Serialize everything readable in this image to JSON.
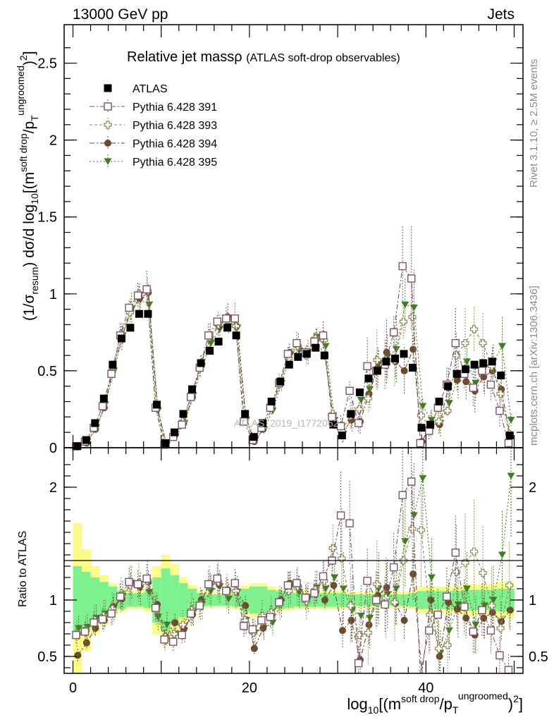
{
  "header": {
    "left": "13000 GeV pp",
    "right": "Jets"
  },
  "side_labels": {
    "rivet": "Rivet 3.1.10, ≥ 2.5M events",
    "mcplots": "mcplots.cern.ch [arXiv:1306.3436]"
  },
  "watermark": "ATLAS_2019_I1772062",
  "chart_data": {
    "type": "scatter",
    "title": "Relative jet massρ",
    "subtitle": "(ATLAS soft-drop observables)",
    "ylabel_main": "(1/σ_resum) dσ/d log10[(m^soft drop/pT^ungroomed)^2]",
    "ylabel_ratio": "Ratio to ATLAS",
    "xlabel": "log10[(m^soft drop/pT^ungroomed)^2]",
    "xlim": [
      -1,
      51
    ],
    "ylim_main": [
      0,
      2.75
    ],
    "ylim_ratio": [
      0.35,
      2.35
    ],
    "x_ticks": [
      "0",
      "20",
      "40"
    ],
    "y_ticks_main": [
      "0",
      "0.5",
      "1",
      "1.5",
      "2",
      "2.5"
    ],
    "y_ticks_ratio": [
      "0.5",
      "1",
      "2"
    ],
    "grid": false,
    "legend_position": "top-left",
    "colors": {
      "atlas": "#000000",
      "p391": "#7a5566",
      "p393": "#8d8a5a",
      "p394": "#6b4a2e",
      "p395": "#3f7d1e",
      "band_inner": "#7df08f",
      "band_outer": "#fbfb8a"
    },
    "x": [
      0.5,
      1.5,
      2.5,
      3.5,
      4.5,
      5.5,
      6.5,
      7.5,
      8.5,
      9.5,
      10.5,
      11.5,
      12.5,
      13.5,
      14.5,
      15.5,
      16.5,
      17.5,
      18.5,
      19.5,
      20.5,
      21.5,
      22.5,
      23.5,
      24.5,
      25.5,
      26.5,
      27.5,
      28.5,
      29.5,
      30.5,
      31.5,
      32.5,
      33.5,
      34.5,
      35.5,
      36.5,
      37.5,
      38.5,
      39.5,
      40.5,
      41.5,
      42.5,
      43.5,
      44.5,
      45.5,
      46.5,
      47.5,
      48.5,
      49.5
    ],
    "series": [
      {
        "name": "ATLAS",
        "marker": "square-filled",
        "values": [
          0.01,
          0.05,
          0.16,
          0.32,
          0.54,
          0.71,
          0.78,
          0.87,
          0.87,
          0.28,
          0.03,
          0.1,
          0.22,
          0.38,
          0.55,
          0.63,
          0.69,
          0.78,
          0.73,
          0.22,
          0.07,
          0.16,
          0.3,
          0.43,
          0.54,
          0.59,
          0.61,
          0.65,
          0.6,
          0.15,
          0.08,
          0.22,
          0.36,
          0.45,
          0.5,
          0.56,
          0.58,
          0.61,
          0.52,
          0.13,
          0.15,
          0.3,
          0.4,
          0.48,
          0.51,
          0.54,
          0.55,
          0.56,
          0.47,
          0.08
        ],
        "ratio_band_inner": [
          0.3,
          0.25,
          0.2,
          0.16,
          0.12,
          0.08,
          0.06,
          0.06,
          0.07,
          0.2,
          0.28,
          0.22,
          0.15,
          0.1,
          0.06,
          0.05,
          0.05,
          0.05,
          0.06,
          0.1,
          0.12,
          0.12,
          0.09,
          0.08,
          0.07,
          0.06,
          0.06,
          0.06,
          0.06,
          0.06,
          0.06,
          0.05,
          0.05,
          0.05,
          0.05,
          0.05,
          0.05,
          0.05,
          0.06,
          0.08,
          0.08,
          0.08,
          0.08,
          0.08,
          0.09,
          0.09,
          0.09,
          0.09,
          0.1,
          0.1
        ],
        "ratio_band_outer": [
          0.68,
          0.45,
          0.3,
          0.22,
          0.15,
          0.1,
          0.08,
          0.08,
          0.1,
          0.3,
          0.4,
          0.32,
          0.2,
          0.13,
          0.08,
          0.07,
          0.06,
          0.07,
          0.08,
          0.13,
          0.15,
          0.15,
          0.12,
          0.1,
          0.09,
          0.08,
          0.08,
          0.08,
          0.08,
          0.08,
          0.08,
          0.07,
          0.07,
          0.07,
          0.07,
          0.07,
          0.07,
          0.07,
          0.08,
          0.12,
          0.12,
          0.12,
          0.12,
          0.12,
          0.14,
          0.14,
          0.14,
          0.14,
          0.16,
          0.16
        ]
      },
      {
        "name": "Pythia 6.428 391",
        "marker": "square-open",
        "values": [
          0.01,
          0.04,
          0.13,
          0.27,
          0.48,
          0.73,
          0.91,
          0.99,
          1.03,
          0.26,
          0.02,
          0.07,
          0.15,
          0.33,
          0.52,
          0.73,
          0.82,
          0.84,
          0.84,
          0.17,
          0.05,
          0.13,
          0.26,
          0.42,
          0.61,
          0.68,
          0.62,
          0.69,
          0.73,
          0.2,
          0.14,
          0.37,
          0.16,
          0.53,
          0.5,
          0.54,
          0.75,
          1.18,
          1.1,
          0.03,
          0.11,
          0.26,
          0.41,
          0.68,
          0.48,
          0.39,
          0.5,
          0.41,
          0.24,
          0.03
        ],
        "ratio": [
          0.69,
          0.72,
          0.8,
          0.83,
          0.88,
          1.03,
          1.16,
          1.14,
          1.19,
          0.93,
          0.65,
          0.63,
          0.69,
          0.88,
          0.95,
          1.14,
          1.19,
          1.08,
          1.15,
          0.77,
          0.74,
          0.82,
          0.85,
          0.98,
          1.13,
          1.15,
          1.02,
          1.06,
          1.21,
          1.35,
          1.75,
          1.68,
          0.44,
          1.17,
          1.0,
          0.96,
          1.29,
          1.93,
          2.05,
          0.23,
          0.73,
          0.87,
          1.03,
          1.42,
          0.94,
          0.72,
          0.91,
          0.73,
          0.51,
          0.38
        ]
      },
      {
        "name": "Pythia 6.428 393",
        "marker": "cross-open",
        "values": [
          0.01,
          0.04,
          0.14,
          0.28,
          0.5,
          0.74,
          0.88,
          1.0,
          1.02,
          0.26,
          0.02,
          0.08,
          0.17,
          0.35,
          0.53,
          0.72,
          0.8,
          0.84,
          0.79,
          0.18,
          0.05,
          0.14,
          0.27,
          0.42,
          0.58,
          0.66,
          0.6,
          0.71,
          0.7,
          0.22,
          0.11,
          0.21,
          0.25,
          0.32,
          0.57,
          0.57,
          0.57,
          0.82,
          0.85,
          0.21,
          0.13,
          0.17,
          0.24,
          0.6,
          0.68,
          0.77,
          0.68,
          0.53,
          0.35,
          0.09
        ],
        "ratio": [
          0.7,
          0.73,
          0.82,
          0.86,
          0.92,
          1.04,
          1.13,
          1.15,
          1.17,
          0.92,
          0.67,
          0.7,
          0.78,
          0.91,
          0.96,
          1.13,
          1.16,
          1.07,
          1.08,
          0.82,
          0.71,
          0.86,
          0.89,
          0.97,
          1.08,
          1.12,
          0.99,
          1.09,
          1.17,
          1.46,
          1.37,
          0.95,
          0.69,
          0.71,
          1.14,
          1.02,
          0.98,
          1.35,
          1.63,
          1.62,
          0.87,
          0.57,
          0.6,
          1.25,
          1.33,
          1.43,
          1.24,
          0.95,
          0.75,
          1.13
        ]
      },
      {
        "name": "Pythia 6.428 394",
        "marker": "circle-filled",
        "values": [
          0.005,
          0.03,
          0.12,
          0.26,
          0.51,
          0.72,
          0.89,
          0.97,
          1.01,
          0.27,
          0.02,
          0.08,
          0.16,
          0.33,
          0.55,
          0.72,
          0.79,
          0.85,
          0.79,
          0.21,
          0.04,
          0.12,
          0.26,
          0.43,
          0.62,
          0.66,
          0.62,
          0.7,
          0.6,
          0.17,
          0.1,
          0.18,
          0.17,
          0.35,
          0.52,
          0.62,
          0.56,
          0.5,
          0.64,
          0.04,
          0.15,
          0.15,
          0.39,
          0.44,
          0.43,
          0.37,
          0.46,
          0.5,
          0.38,
          0.07
        ],
        "ratio": [
          0.51,
          0.62,
          0.75,
          0.82,
          0.94,
          1.01,
          1.14,
          1.12,
          1.16,
          0.96,
          0.67,
          0.8,
          0.74,
          0.87,
          1.0,
          1.14,
          1.14,
          1.09,
          1.08,
          0.95,
          0.57,
          0.75,
          0.87,
          1.0,
          1.15,
          1.12,
          1.02,
          1.08,
          1.0,
          1.13,
          0.73,
          0.82,
          0.47,
          0.78,
          1.04,
          1.11,
          0.97,
          0.82,
          1.23,
          0.31,
          1.0,
          0.5,
          0.98,
          0.92,
          0.84,
          0.69,
          0.84,
          0.89,
          0.81,
          0.91
        ]
      },
      {
        "name": "Pythia 6.428 395",
        "marker": "triangle-down-filled",
        "values": [
          0.01,
          0.04,
          0.13,
          0.28,
          0.5,
          0.73,
          0.9,
          0.96,
          0.93,
          0.24,
          0.02,
          0.07,
          0.16,
          0.34,
          0.53,
          0.68,
          0.77,
          0.79,
          0.78,
          0.18,
          0.05,
          0.12,
          0.24,
          0.42,
          0.6,
          0.63,
          0.62,
          0.72,
          0.66,
          0.18,
          0.09,
          0.2,
          0.31,
          0.38,
          0.55,
          0.59,
          0.64,
          0.93,
          0.91,
          0.27,
          0.18,
          0.16,
          0.29,
          0.46,
          0.56,
          0.42,
          0.52,
          0.56,
          0.66,
          0.18
        ],
        "ratio": [
          0.75,
          0.76,
          0.84,
          0.88,
          0.93,
          1.03,
          1.15,
          1.1,
          1.07,
          0.85,
          0.78,
          0.7,
          0.73,
          0.89,
          0.96,
          1.08,
          1.12,
          1.01,
          1.07,
          0.82,
          0.71,
          0.75,
          0.8,
          0.98,
          1.11,
          1.07,
          1.02,
          1.11,
          1.1,
          1.2,
          1.1,
          0.91,
          0.86,
          0.84,
          1.1,
          1.05,
          1.1,
          1.52,
          1.75,
          2.08,
          1.2,
          0.53,
          0.73,
          0.96,
          1.1,
          0.78,
          0.95,
          1.0,
          1.4,
          2.1
        ]
      }
    ]
  }
}
